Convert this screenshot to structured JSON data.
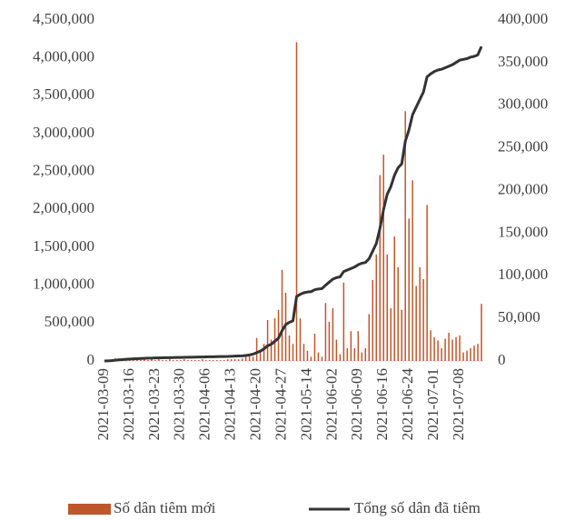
{
  "chart_data": {
    "type": "bar_line",
    "categories": [
      "2021-03-09",
      null,
      null,
      null,
      null,
      null,
      null,
      "2021-03-16",
      null,
      null,
      null,
      null,
      null,
      null,
      "2021-03-23",
      null,
      null,
      null,
      null,
      null,
      null,
      "2021-03-30",
      null,
      null,
      null,
      null,
      null,
      null,
      "2021-04-06",
      null,
      null,
      null,
      null,
      null,
      null,
      "2021-04-13",
      null,
      null,
      null,
      null,
      null,
      null,
      "2021-04-20",
      null,
      null,
      null,
      null,
      null,
      null,
      "2021-04-27",
      null,
      null,
      null,
      null,
      null,
      null,
      "2021-05-14",
      null,
      null,
      null,
      null,
      null,
      null,
      "2021-06-02",
      null,
      null,
      null,
      null,
      null,
      null,
      "2021-06-09",
      null,
      null,
      null,
      null,
      null,
      null,
      "2021-06-16",
      null,
      null,
      null,
      null,
      null,
      null,
      "2021-06-24",
      null,
      null,
      null,
      null,
      null,
      null,
      "2021-07-01",
      null,
      null,
      null,
      null,
      null,
      null,
      "2021-07-08",
      null,
      null,
      null,
      null,
      null,
      null
    ],
    "series": [
      {
        "name": "Số dân tiêm mới",
        "type": "bar",
        "axis": "y2",
        "color": "#c0562b",
        "values": [
          0,
          1000,
          2000,
          3000,
          3000,
          2000,
          3000,
          2000,
          3000,
          2000,
          2000,
          3000,
          1000,
          2000,
          1000,
          2000,
          1000,
          1000,
          2000,
          1000,
          1000,
          1000,
          2000,
          1000,
          1000,
          1000,
          1000,
          2000,
          1000,
          1000,
          1000,
          1000,
          1000,
          1000,
          2000,
          2000,
          2000,
          2000,
          3000,
          5000,
          8000,
          5000,
          27000,
          12000,
          20000,
          48000,
          25000,
          50000,
          60000,
          107000,
          80000,
          30000,
          20000,
          374000,
          50000,
          20000,
          12000,
          5000,
          32000,
          10000,
          5000,
          68000,
          46000,
          62000,
          25000,
          8000,
          92000,
          15000,
          35000,
          15000,
          35000,
          10000,
          15000,
          55000,
          95000,
          125000,
          218000,
          242000,
          125000,
          62000,
          146000,
          110000,
          60000,
          293000,
          167000,
          212000,
          88000,
          110000,
          96000,
          183000,
          36000,
          28000,
          24000,
          15000,
          26000,
          33000,
          25000,
          28000,
          30000,
          10000,
          12000,
          15000,
          18000,
          20000,
          67000
        ]
      },
      {
        "name": "Tổng số dân đã tiêm",
        "type": "line",
        "axis": "y",
        "color": "#333333",
        "values": [
          0,
          2000,
          5000,
          10000,
          15000,
          18000,
          22000,
          25000,
          28000,
          30000,
          33000,
          35000,
          37000,
          38000,
          40000,
          41000,
          42000,
          43000,
          44000,
          45000,
          46000,
          47000,
          48000,
          49000,
          50000,
          51000,
          52000,
          53000,
          54000,
          55000,
          56000,
          57000,
          58000,
          59000,
          60000,
          62000,
          64000,
          66000,
          68000,
          72000,
          80000,
          90000,
          110000,
          130000,
          160000,
          200000,
          220000,
          260000,
          300000,
          400000,
          480000,
          510000,
          530000,
          850000,
          880000,
          900000,
          910000,
          915000,
          940000,
          950000,
          955000,
          1000000,
          1040000,
          1080000,
          1100000,
          1110000,
          1180000,
          1200000,
          1220000,
          1240000,
          1270000,
          1290000,
          1300000,
          1350000,
          1450000,
          1550000,
          1750000,
          2000000,
          2200000,
          2300000,
          2450000,
          2550000,
          2600000,
          2900000,
          3050000,
          3250000,
          3350000,
          3450000,
          3550000,
          3750000,
          3790000,
          3820000,
          3840000,
          3850000,
          3870000,
          3890000,
          3910000,
          3940000,
          3970000,
          3980000,
          3990000,
          4010000,
          4020000,
          4040000,
          4150000
        ]
      }
    ],
    "ylim": [
      0,
      4500000
    ],
    "yticks": [
      0,
      {
        "value": 500000,
        "label": "500,000"
      },
      {
        "value": 1000000,
        "label": "1,000,000"
      },
      {
        "value": 1500000,
        "label": "1,500,000"
      },
      {
        "value": 2000000,
        "label": "2,000,000"
      },
      {
        "value": 2500000,
        "label": "2,500,000"
      },
      {
        "value": 3000000,
        "label": "3,000,000"
      },
      {
        "value": 3500000,
        "label": "3,500,000"
      },
      {
        "value": 4000000,
        "label": "4,000,000"
      },
      {
        "value": 4500000,
        "label": "4,500,000"
      }
    ],
    "y2lim": [
      0,
      400000
    ],
    "y2ticks": [
      0,
      {
        "value": 50000,
        "label": "50,000"
      },
      {
        "value": 100000,
        "label": "100,000"
      },
      {
        "value": 150000,
        "label": "150,000"
      },
      {
        "value": 200000,
        "label": "200,000"
      },
      {
        "value": 250000,
        "label": "250,000"
      },
      {
        "value": 300000,
        "label": "300,000"
      },
      {
        "value": 350000,
        "label": "350,000"
      },
      {
        "value": 400000,
        "label": "400,000"
      }
    ],
    "grid": false,
    "legend": "bottom"
  }
}
